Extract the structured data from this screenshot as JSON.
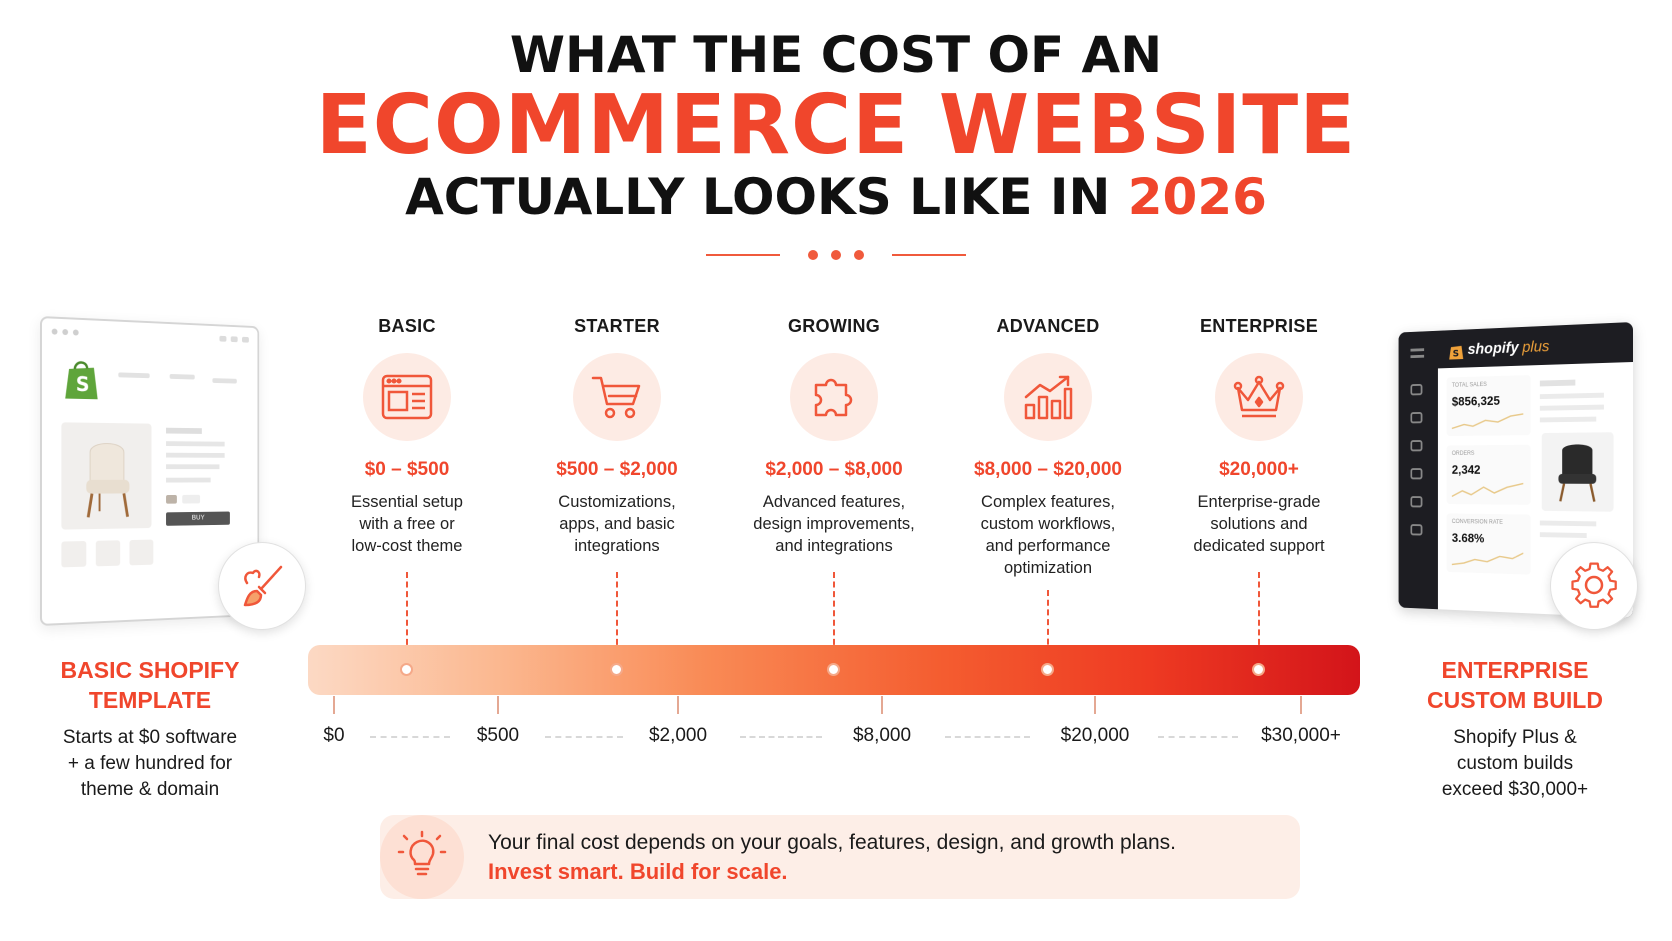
{
  "header": {
    "line1": "WHAT THE COST OF AN",
    "line2": "ECOMMERCE WEBSITE",
    "line3_prefix": "ACTUALLY LOOKS LIKE IN ",
    "line3_year": "2026"
  },
  "colors": {
    "accent": "#f0462c",
    "dark": "#1a1a1a",
    "light_accent": "#fdebe4"
  },
  "tiers": [
    {
      "name": "BASIC",
      "icon": "browser-template-icon",
      "price": "$0 – $500",
      "desc": [
        "Essential setup",
        "with a free or",
        "low-cost theme"
      ]
    },
    {
      "name": "STARTER",
      "icon": "shopping-cart-icon",
      "price": "$500 – $2,000",
      "desc": [
        "Customizations,",
        "apps, and basic",
        "integrations"
      ]
    },
    {
      "name": "GROWING",
      "icon": "puzzle-piece-icon",
      "price": "$2,000 – $8,000",
      "desc": [
        "Advanced features,",
        "design improvements,",
        "and integrations"
      ]
    },
    {
      "name": "ADVANCED",
      "icon": "growth-chart-icon",
      "price": "$8,000 – $20,000",
      "desc": [
        "Complex features,",
        "custom workflows,",
        "and performance",
        "optimization"
      ]
    },
    {
      "name": "ENTERPRISE",
      "icon": "crown-icon",
      "price": "$20,000+",
      "desc": [
        "Enterprise-grade",
        "solutions and",
        "dedicated support"
      ]
    }
  ],
  "axis_labels": [
    "$0",
    "$500",
    "$2,000",
    "$8,000",
    "$20,000",
    "$30,000+"
  ],
  "left_panel": {
    "title": [
      "BASIC SHOPIFY",
      "TEMPLATE"
    ],
    "desc": [
      "Starts at $0 software",
      "+ a few hundred for",
      "theme & domain"
    ],
    "mockup_button": "BUY",
    "badge_icon": "paintbrush-icon"
  },
  "right_panel": {
    "title": [
      "ENTERPRISE",
      "CUSTOM BUILD"
    ],
    "desc": [
      "Shopify Plus &",
      "custom builds",
      "exceed $30,000+"
    ],
    "brand": "shopify",
    "brand_suffix": "plus",
    "stats": [
      {
        "label": "TOTAL SALES",
        "value": "$856,325"
      },
      {
        "label": "ORDERS",
        "value": "2,342"
      },
      {
        "label": "CONVERSION RATE",
        "value": "3.68%"
      }
    ],
    "badge_icon": "gear-icon"
  },
  "callout": {
    "icon": "lightbulb-icon",
    "line1": "Your final cost depends on your goals, features, design, and growth plans.",
    "line2": "Invest smart. Build for scale."
  }
}
